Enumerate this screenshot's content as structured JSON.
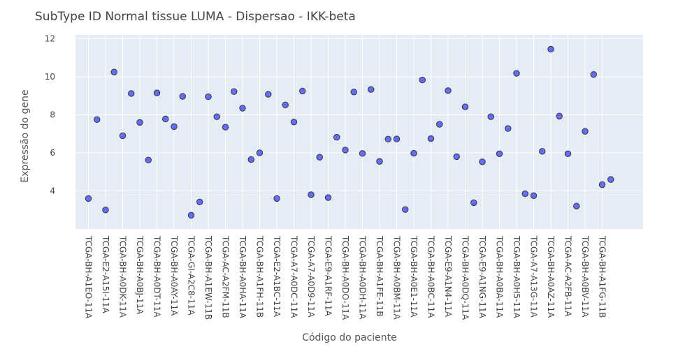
{
  "chart_data": {
    "type": "scatter",
    "title": "SubType ID Normal tissue LUMA - Dispersao - IKK-beta",
    "xlabel": "Código do paciente",
    "ylabel": "Expressão do gene",
    "ylim": [
      2.0,
      12.2
    ],
    "yticks": [
      4,
      6,
      8,
      10,
      12
    ],
    "grid": true,
    "marker_color": "#636efa",
    "plot_background": "#e5ecf6",
    "tick_labels": [
      "TCGA-BH-A1EO-11A",
      "TCGA-E2-A15I-11A",
      "TCGA-BH-A0DK-11A",
      "TCGA-BH-A0BJ-11A",
      "TCGA-BH-A0DT-11A",
      "TCGA-BH-A0AY-11A",
      "TCGA-GI-A2C8-11A",
      "TCGA-BH-A1EW-11B",
      "TCGA-AC-A2FM-11B",
      "TCGA-BH-A0HA-11A",
      "TCGA-BH-A1FH-11B",
      "TCGA-E2-A1BC-11A",
      "TCGA-A7-A0DC-11A",
      "TCGA-A7-A0D9-11A",
      "TCGA-E9-A1RF-11A",
      "TCGA-BH-A0DO-11A",
      "TCGA-BH-A0DH-11A",
      "TCGA-BH-A1FE-11B",
      "TCGA-BH-A0BM-11A",
      "TCGA-BH-A0E1-11A",
      "TCGA-BH-A0BC-11A",
      "TCGA-E9-A1N4-11A",
      "TCGA-BH-A0DQ-11A",
      "TCGA-E9-A1NG-11A",
      "TCGA-BH-A0BA-11A",
      "TCGA-BH-A0H5-11A",
      "TCGA-A7-A13G-11A",
      "TCGA-BH-A0AZ-11A",
      "TCGA-AC-A2FB-11A",
      "TCGA-BH-A0BV-11A",
      "TCGA-BH-A1FG-11B"
    ],
    "values": [
      3.6,
      7.75,
      3.0,
      10.25,
      6.9,
      9.12,
      7.6,
      5.62,
      9.15,
      7.78,
      7.38,
      8.97,
      2.72,
      3.42,
      8.95,
      7.9,
      7.35,
      9.22,
      8.35,
      5.65,
      6.0,
      9.08,
      3.6,
      8.52,
      7.62,
      9.25,
      3.8,
      5.77,
      3.65,
      6.82,
      6.15,
      9.2,
      5.97,
      9.33,
      5.55,
      6.72,
      6.73,
      3.02,
      5.98,
      9.83,
      6.75,
      7.5,
      9.27,
      5.8,
      8.42,
      3.38,
      5.53,
      7.9,
      5.95,
      7.28,
      10.18,
      3.85,
      3.75,
      6.08,
      11.45,
      7.93,
      5.95,
      3.2,
      7.13,
      10.12,
      4.33,
      4.6
    ]
  }
}
